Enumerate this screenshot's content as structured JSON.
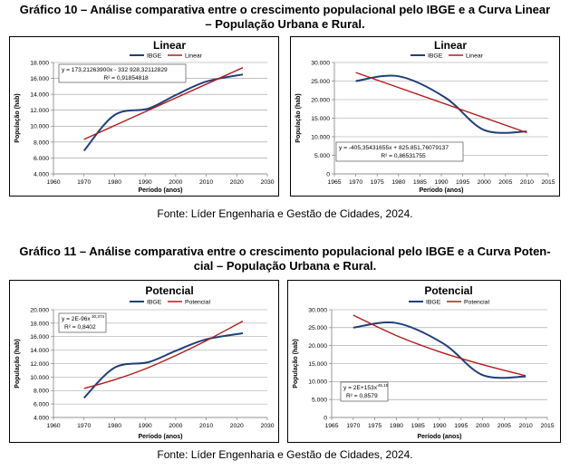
{
  "figures": [
    {
      "title_line1": "Gráfico 10 – Análise comparativa entre o crescimento populacional pelo IBGE e a Curva Linear",
      "title_line2": "– População Urbana e Rural.",
      "source": "Fonte: Líder Engenharia e Gestão de Cidades, 2024."
    },
    {
      "title_line1": "Gráfico 11 – Análise comparativa entre o crescimento populacional pelo IBGE e a Curva Poten-",
      "title_line2": "cial – População Urbana e Rural.",
      "source": "Fonte: Líder Engenharia e Gestão de Cidades, 2024."
    }
  ],
  "colors": {
    "ibge": "#1f3f7a",
    "trend": "#b01c1c",
    "axis": "#7f7f7f"
  },
  "chart_data": [
    {
      "type": "line",
      "title": "Linear",
      "xlabel": "Período (anos)",
      "ylabel": "População (hab)",
      "xlim": [
        1960,
        2030
      ],
      "xticks": [
        1960,
        1970,
        1980,
        1990,
        2000,
        2010,
        2020,
        2030
      ],
      "ylim": [
        4000,
        18000
      ],
      "yticks": [
        4000,
        6000,
        8000,
        10000,
        12000,
        14000,
        16000,
        18000
      ],
      "ytick_labels": [
        "4.000",
        "6.000",
        "8.000",
        "10.000",
        "12.000",
        "14.000",
        "16.000",
        "18.000"
      ],
      "grid": "horizontal",
      "legend": "top",
      "series": [
        {
          "name": "IBGE",
          "x": [
            1970,
            1980,
            1991,
            2000,
            2010,
            2022
          ],
          "y": [
            6900,
            11400,
            12200,
            13900,
            15600,
            16500
          ]
        },
        {
          "name": "Linear",
          "x": [
            1970,
            2022
          ],
          "y": [
            8340,
            17350
          ]
        }
      ],
      "annotation": [
        "y = 173,21263900x - 332 928,32112829",
        "R² = 0,91854818"
      ]
    },
    {
      "type": "line",
      "title": "Linear",
      "xlabel": "Período (anos)",
      "ylabel": "População (hab)",
      "xlim": [
        1965,
        2015
      ],
      "xticks": [
        1965,
        1970,
        1975,
        1980,
        1985,
        1990,
        1995,
        2000,
        2005,
        2010,
        2015
      ],
      "ylim": [
        0,
        30000
      ],
      "yticks": [
        0,
        5000,
        10000,
        15000,
        20000,
        25000,
        30000
      ],
      "ytick_labels": [
        "0",
        "5.000",
        "10.000",
        "15.000",
        "20.000",
        "25.000",
        "30.000"
      ],
      "grid": "horizontal",
      "legend": "top",
      "series": [
        {
          "name": "IBGE",
          "x": [
            1970,
            1980,
            1991,
            2000,
            2010
          ],
          "y": [
            25000,
            26300,
            20500,
            11800,
            11400
          ]
        },
        {
          "name": "Linear",
          "x": [
            1970,
            2010
          ],
          "y": [
            27300,
            11100
          ]
        }
      ],
      "annotation": [
        "y = -405,35431655x + 825.851,76079137",
        "R² = 0,86531755"
      ]
    },
    {
      "type": "line",
      "title": "Potencial",
      "xlabel": "Período (anos)",
      "ylabel": "População (hab)",
      "xlim": [
        1960,
        2030
      ],
      "xticks": [
        1960,
        1970,
        1980,
        1990,
        2000,
        2010,
        2020,
        2030
      ],
      "ylim": [
        4000,
        20000
      ],
      "yticks": [
        4000,
        6000,
        8000,
        10000,
        12000,
        14000,
        16000,
        18000,
        20000
      ],
      "ytick_labels": [
        "4.000",
        "6.000",
        "8.000",
        "10.000",
        "12.000",
        "14.000",
        "16.000",
        "18.000",
        "20.000"
      ],
      "grid": "horizontal",
      "legend": "top",
      "series": [
        {
          "name": "IBGE",
          "x": [
            1970,
            1980,
            1991,
            2000,
            2010,
            2022
          ],
          "y": [
            6900,
            11400,
            12200,
            13900,
            15600,
            16500
          ]
        },
        {
          "name": "Potencial",
          "x": [
            1970,
            1980,
            1990,
            2000,
            2010,
            2022
          ],
          "y": [
            8300,
            9600,
            11200,
            13200,
            15400,
            18300
          ]
        }
      ],
      "annotation": [
        "y = 2E-96x",
        "30,374",
        "R² = 0,8402"
      ]
    },
    {
      "type": "line",
      "title": "Potencial",
      "xlabel": "Período (anos)",
      "ylabel": "População (hab)",
      "xlim": [
        1965,
        2015
      ],
      "xticks": [
        1965,
        1970,
        1975,
        1980,
        1985,
        1990,
        1995,
        2000,
        2005,
        2010,
        2015
      ],
      "ylim": [
        0,
        30000
      ],
      "yticks": [
        0,
        5000,
        10000,
        15000,
        20000,
        25000,
        30000
      ],
      "ytick_labels": [
        "0",
        "5.000",
        "10.000",
        "15.000",
        "20.000",
        "25.000",
        "30.000"
      ],
      "grid": "horizontal",
      "legend": "top",
      "series": [
        {
          "name": "IBGE",
          "x": [
            1970,
            1980,
            1991,
            2000,
            2010
          ],
          "y": [
            25000,
            26300,
            20500,
            11800,
            11400
          ]
        },
        {
          "name": "Potencial",
          "x": [
            1970,
            1980,
            1990,
            2000,
            2010
          ],
          "y": [
            28500,
            22800,
            18300,
            14700,
            11600
          ]
        }
      ],
      "annotation": [
        "y = 2E+153x",
        "-45,15",
        "R² = 0,8579"
      ]
    }
  ]
}
